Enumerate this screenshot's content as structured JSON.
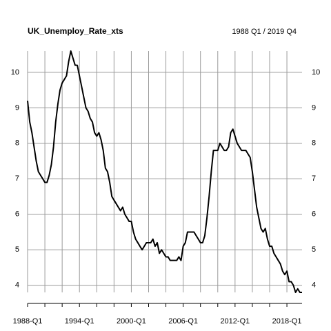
{
  "chart_data": {
    "type": "line",
    "title": "UK_Unemploy_Rate_xts",
    "subtitle": "1988 Q1 / 2019 Q4",
    "categories": [
      "1988-Q1",
      null,
      null,
      null,
      null,
      null,
      null,
      null,
      null,
      null,
      null,
      null,
      null,
      null,
      null,
      null,
      null,
      null,
      null,
      null,
      null,
      null,
      null,
      null,
      "1994-Q1",
      null,
      null,
      null,
      null,
      null,
      null,
      null,
      null,
      null,
      null,
      null,
      null,
      null,
      null,
      null,
      null,
      null,
      null,
      null,
      null,
      null,
      null,
      null,
      "2000-Q1",
      null,
      null,
      null,
      null,
      null,
      null,
      null,
      null,
      null,
      null,
      null,
      null,
      null,
      null,
      null,
      null,
      null,
      null,
      null,
      null,
      null,
      null,
      null,
      "2006-Q1",
      null,
      null,
      null,
      null,
      null,
      null,
      null,
      null,
      null,
      null,
      null,
      null,
      null,
      null,
      null,
      null,
      null,
      null,
      null,
      null,
      null,
      null,
      null,
      "2012-Q1",
      null,
      null,
      null,
      null,
      null,
      null,
      null,
      null,
      null,
      null,
      null,
      null,
      null,
      null,
      null,
      null,
      null,
      null,
      null,
      null,
      null,
      null,
      null,
      "2018-Q1",
      null,
      null,
      null,
      null,
      null,
      null,
      null
    ],
    "values": [
      9.2,
      8.6,
      8.3,
      7.9,
      7.5,
      7.2,
      7.1,
      7.0,
      6.9,
      6.9,
      7.1,
      7.4,
      7.9,
      8.6,
      9.1,
      9.5,
      9.7,
      9.8,
      9.9,
      10.3,
      10.6,
      10.4,
      10.2,
      10.2,
      9.9,
      9.6,
      9.3,
      9.0,
      8.9,
      8.7,
      8.6,
      8.3,
      8.2,
      8.3,
      8.1,
      7.8,
      7.3,
      7.2,
      6.9,
      6.5,
      6.4,
      6.3,
      6.2,
      6.1,
      6.2,
      6.0,
      5.9,
      5.8,
      5.8,
      5.5,
      5.3,
      5.2,
      5.1,
      5.0,
      5.1,
      5.2,
      5.2,
      5.2,
      5.3,
      5.1,
      5.2,
      4.9,
      5.0,
      4.9,
      4.8,
      4.8,
      4.7,
      4.7,
      4.7,
      4.7,
      4.8,
      4.7,
      5.1,
      5.2,
      5.5,
      5.5,
      5.5,
      5.5,
      5.4,
      5.3,
      5.2,
      5.2,
      5.4,
      5.9,
      6.5,
      7.2,
      7.8,
      7.8,
      7.8,
      8.0,
      7.9,
      7.8,
      7.8,
      7.9,
      8.3,
      8.4,
      8.2,
      8.0,
      7.9,
      7.8,
      7.8,
      7.8,
      7.7,
      7.6,
      7.2,
      6.7,
      6.2,
      5.9,
      5.6,
      5.5,
      5.6,
      5.3,
      5.1,
      5.1,
      4.9,
      4.8,
      4.7,
      4.6,
      4.4,
      4.3,
      4.4,
      4.1,
      4.1,
      4.0,
      3.8,
      3.9,
      3.8,
      3.8
    ],
    "color": "#000000",
    "ylim": [
      3.8,
      10.6
    ],
    "yticks": [
      4,
      5,
      6,
      7,
      8,
      9,
      10
    ],
    "grid": true
  }
}
